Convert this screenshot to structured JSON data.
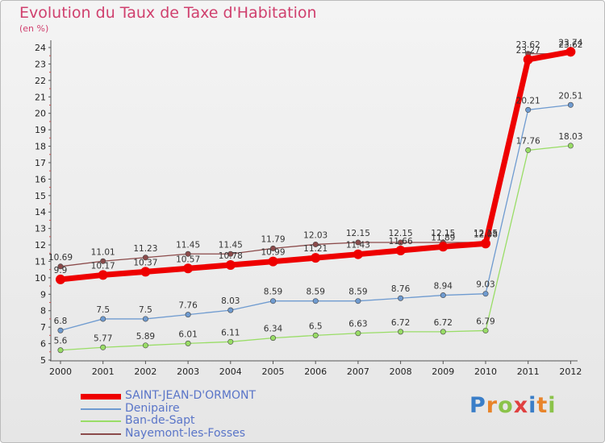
{
  "title": "Evolution du Taux de Taxe d'Habitation",
  "subtitle": "(en %)",
  "logo_text": "Proxiti",
  "chart_data": {
    "type": "line",
    "x": [
      "2000",
      "2001",
      "2002",
      "2003",
      "2004",
      "2005",
      "2006",
      "2007",
      "2008",
      "2009",
      "2010",
      "2011",
      "2012"
    ],
    "ylim": [
      5,
      24
    ],
    "yticks": [
      5,
      6,
      7,
      8,
      9,
      10,
      11,
      12,
      13,
      14,
      15,
      16,
      17,
      18,
      19,
      20,
      21,
      22,
      23,
      24
    ],
    "grid": false,
    "legend_position": "bottom-left",
    "series": [
      {
        "name": "SAINT-JEAN-D'ORMONT",
        "color": "#ee0000",
        "emphasis": true,
        "values": [
          9.9,
          10.17,
          10.37,
          10.57,
          10.78,
          10.99,
          11.21,
          11.43,
          11.66,
          11.89,
          12.08,
          23.27,
          23.74
        ],
        "labels": [
          "9.9",
          "10.17",
          "10.37",
          "10.57",
          "10.78",
          "10.99",
          "11.21",
          "11.43",
          "11.66",
          "11.89",
          "12.08",
          "23.27",
          "23.74"
        ]
      },
      {
        "name": "Denipaire",
        "color": "#6f9bd0",
        "values": [
          6.8,
          7.5,
          7.5,
          7.76,
          8.03,
          8.59,
          8.59,
          8.59,
          8.76,
          8.94,
          9.03,
          20.21,
          20.51
        ],
        "labels": [
          "6.8",
          "7.5",
          "7.5",
          "7.76",
          "8.03",
          "8.59",
          "8.59",
          "8.59",
          "8.76",
          "8.94",
          "9.03",
          "20.21",
          "20.51"
        ]
      },
      {
        "name": "Ban-de-Sapt",
        "color": "#99dd66",
        "values": [
          5.6,
          5.77,
          5.89,
          6.01,
          6.11,
          6.34,
          6.5,
          6.63,
          6.72,
          6.72,
          6.79,
          17.76,
          18.03
        ],
        "labels": [
          "5.6",
          "5.77",
          "5.89",
          "6.01",
          "6.11",
          "6.34",
          "6.5",
          "6.63",
          "6.72",
          "6.72",
          "6.79",
          "17.76",
          "18.03"
        ]
      },
      {
        "name": "Nayemont-les-Fosses",
        "color": "#8b4a4a",
        "values": [
          10.69,
          11.01,
          11.23,
          11.45,
          11.45,
          11.79,
          12.03,
          12.15,
          12.15,
          12.15,
          12.15,
          23.62,
          23.62
        ],
        "labels": [
          "10.69",
          "11.01",
          "11.23",
          "11.45",
          "11.45",
          "11.79",
          "12.03",
          "12.15",
          "12.15",
          "12.15",
          "12.15",
          "23.62",
          "23.62"
        ]
      }
    ]
  }
}
